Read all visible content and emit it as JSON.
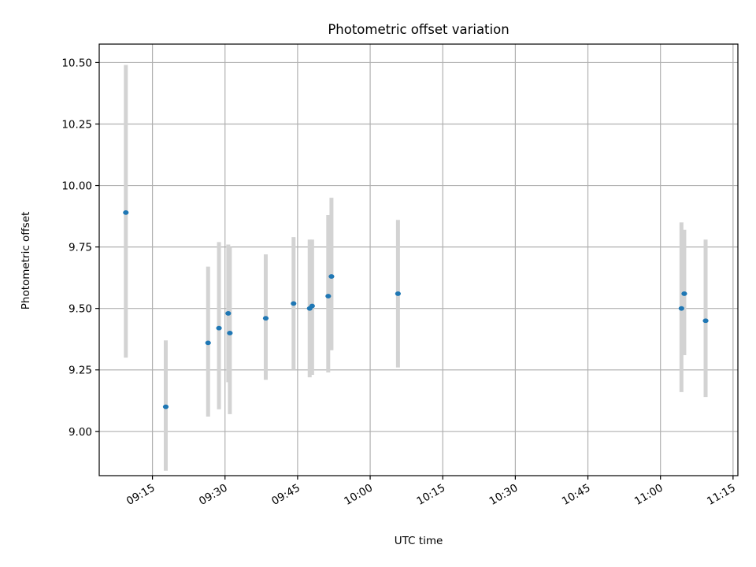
{
  "chart_data": {
    "type": "scatter",
    "title": "Photometric offset variation",
    "xlabel": "UTC time",
    "ylabel": "Photometric offset",
    "x_axis_type": "time",
    "xlim": [
      "09:04",
      "11:16"
    ],
    "ylim": [
      8.82,
      10.575
    ],
    "x_ticks": [
      "09:15",
      "09:30",
      "09:45",
      "10:00",
      "10:15",
      "10:30",
      "10:45",
      "11:00",
      "11:15"
    ],
    "y_ticks": [
      "9.00",
      "9.25",
      "9.50",
      "9.75",
      "10.00",
      "10.25",
      "10.50"
    ],
    "grid": true,
    "colors": {
      "point": "#1f77b4",
      "errorbar": "#d3d3d3",
      "grid": "#b0b0b0"
    },
    "series": [
      {
        "points": [
          {
            "x": "09:09:30",
            "y": 9.89,
            "ymin": 9.3,
            "ymax": 10.49
          },
          {
            "x": "09:17:45",
            "y": 9.1,
            "ymin": 8.84,
            "ymax": 9.37
          },
          {
            "x": "09:26:30",
            "y": 9.36,
            "ymin": 9.06,
            "ymax": 9.67
          },
          {
            "x": "09:28:45",
            "y": 9.42,
            "ymin": 9.09,
            "ymax": 9.77
          },
          {
            "x": "09:30:40",
            "y": 9.48,
            "ymin": 9.2,
            "ymax": 9.76
          },
          {
            "x": "09:31:00",
            "y": 9.4,
            "ymin": 9.07,
            "ymax": 9.75
          },
          {
            "x": "09:38:25",
            "y": 9.46,
            "ymin": 9.21,
            "ymax": 9.72
          },
          {
            "x": "09:44:10",
            "y": 9.52,
            "ymin": 9.25,
            "ymax": 9.79
          },
          {
            "x": "09:47:30",
            "y": 9.5,
            "ymin": 9.22,
            "ymax": 9.78
          },
          {
            "x": "09:48:00",
            "y": 9.51,
            "ymin": 9.23,
            "ymax": 9.78
          },
          {
            "x": "09:51:20",
            "y": 9.55,
            "ymin": 9.24,
            "ymax": 9.88
          },
          {
            "x": "09:52:00",
            "y": 9.63,
            "ymin": 9.33,
            "ymax": 9.95
          },
          {
            "x": "10:05:45",
            "y": 9.56,
            "ymin": 9.26,
            "ymax": 9.86
          },
          {
            "x": "11:04:20",
            "y": 9.5,
            "ymin": 9.16,
            "ymax": 9.85
          },
          {
            "x": "11:04:55",
            "y": 9.56,
            "ymin": 9.31,
            "ymax": 9.82
          },
          {
            "x": "11:09:20",
            "y": 9.45,
            "ymin": 9.14,
            "ymax": 9.78
          }
        ]
      }
    ]
  }
}
